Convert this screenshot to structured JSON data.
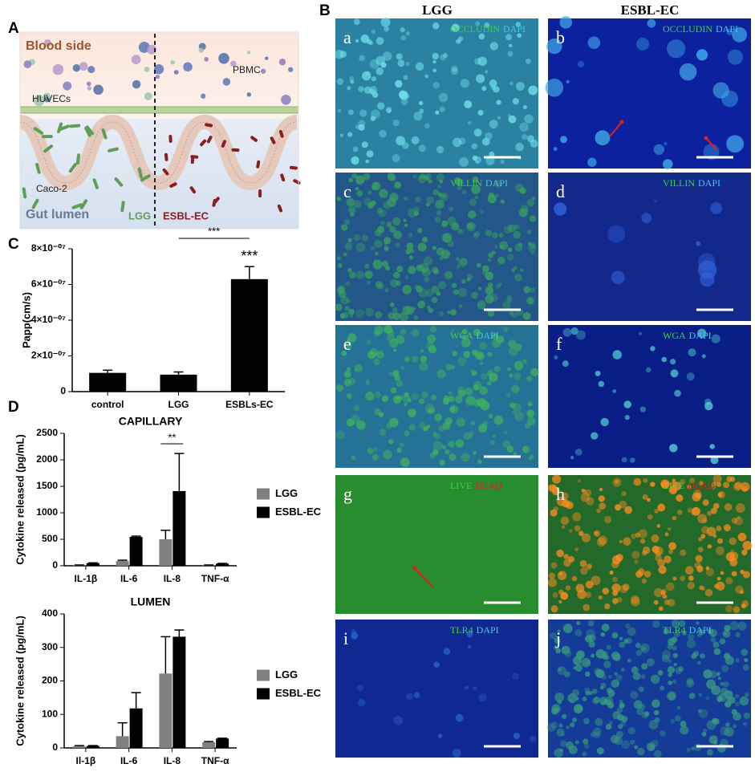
{
  "panel_labels": [
    "A",
    "B",
    "C",
    "D"
  ],
  "schematic": {
    "blood_side": "Blood side",
    "huvecs": "HUVECs",
    "pbmc": "PBMC",
    "caco2": "Caco-2",
    "gut_lumen": "Gut lumen",
    "lgg": "LGG",
    "esbl_ec": "ESBL-EC"
  },
  "micrographs": {
    "columns": [
      "LGG",
      "ESBL-EC"
    ],
    "panels": [
      {
        "letter": "a",
        "stain": [
          {
            "text": "OCCLUDIN",
            "color": "#3fd04a"
          },
          {
            "text": "DAPI",
            "color": "#45c8e6"
          }
        ]
      },
      {
        "letter": "b",
        "stain": [
          {
            "text": "OCCLUDIN",
            "color": "#3fd04a"
          },
          {
            "text": "DAPI",
            "color": "#45c8e6"
          }
        ]
      },
      {
        "letter": "c",
        "stain": [
          {
            "text": "VILLIN",
            "color": "#3fd04a"
          },
          {
            "text": "DAPI",
            "color": "#45c8e6"
          }
        ]
      },
      {
        "letter": "d",
        "stain": [
          {
            "text": "VILLIN",
            "color": "#3fd04a"
          },
          {
            "text": "DAPI",
            "color": "#45c8e6"
          }
        ]
      },
      {
        "letter": "e",
        "stain": [
          {
            "text": "WGA",
            "color": "#3fd04a"
          },
          {
            "text": "DAPI",
            "color": "#45c8e6"
          }
        ]
      },
      {
        "letter": "f",
        "stain": [
          {
            "text": "WGA",
            "color": "#3fd04a"
          },
          {
            "text": "DAPI",
            "color": "#45c8e6"
          }
        ]
      },
      {
        "letter": "g",
        "stain": [
          {
            "text": "LIVE",
            "color": "#3fd04a"
          },
          {
            "text": "DEAD",
            "color": "#e02020"
          }
        ]
      },
      {
        "letter": "h",
        "stain": [
          {
            "text": "LIVE",
            "color": "#3fd04a"
          },
          {
            "text": "DEAD",
            "color": "#e02020"
          }
        ]
      },
      {
        "letter": "i",
        "stain": [
          {
            "text": "TLR4",
            "color": "#3fd04a"
          },
          {
            "text": "DAPI",
            "color": "#45c8e6"
          }
        ]
      },
      {
        "letter": "j",
        "stain": [
          {
            "text": "TLR4",
            "color": "#3fd04a"
          },
          {
            "text": "DAPI",
            "color": "#45c8e6"
          }
        ]
      }
    ]
  },
  "chart_data": [
    {
      "type": "bar",
      "ylabel": "Papp(cm/s)",
      "categories": [
        "control",
        "LGG",
        "ESBLs-EC"
      ],
      "values": [
        1.05e-07,
        9.5e-08,
        6.3e-07
      ],
      "errors": [
        1.5e-08,
        1.5e-08,
        7e-08
      ],
      "color": "#000000",
      "ylim": [
        0,
        8e-07
      ],
      "yticks": [
        0,
        {
          "value": 2e-07,
          "label": "2×10⁻⁰⁷"
        },
        {
          "value": 4e-07,
          "label": "4×10⁻⁰⁷"
        },
        {
          "value": 6e-07,
          "label": "6×10⁻⁰⁷"
        },
        {
          "value": 8e-07,
          "label": "8×10⁻⁰⁷"
        }
      ],
      "annotations": [
        "***",
        "***"
      ]
    },
    {
      "type": "bar",
      "title": "CAPILLARY",
      "ylabel": "Cytokine released (pg/mL)",
      "categories": [
        "IL-1β",
        "IL-6",
        "IL-8",
        "TNF-α"
      ],
      "series": [
        {
          "name": "LGG",
          "color": "#808080",
          "values": [
            10,
            90,
            500,
            10
          ],
          "errors": [
            5,
            15,
            170,
            5
          ]
        },
        {
          "name": "ESBL-EC",
          "color": "#000000",
          "values": [
            50,
            545,
            1410,
            40
          ],
          "errors": [
            5,
            15,
            710,
            5
          ]
        }
      ],
      "ylim": [
        0,
        2500
      ],
      "yticks": [
        0,
        500,
        1000,
        1500,
        2000,
        2500
      ],
      "legend": "right",
      "annotations": [
        "**"
      ]
    },
    {
      "type": "bar",
      "title": "LUMEN",
      "ylabel": "Cytokine released (pg/mL)",
      "categories": [
        "Il-1β",
        "IL-6",
        "IL-8",
        "TNF-α"
      ],
      "series": [
        {
          "name": "LGG",
          "color": "#808080",
          "values": [
            5,
            35,
            222,
            17
          ],
          "errors": [
            2,
            40,
            110,
            2
          ]
        },
        {
          "name": "ESBL-EC",
          "color": "#000000",
          "values": [
            6,
            118,
            332,
            28
          ],
          "errors": [
            1,
            47,
            20,
            1
          ]
        }
      ],
      "ylim": [
        0,
        400
      ],
      "yticks": [
        0,
        100,
        200,
        300,
        400
      ],
      "legend": "right",
      "annotations": []
    }
  ]
}
